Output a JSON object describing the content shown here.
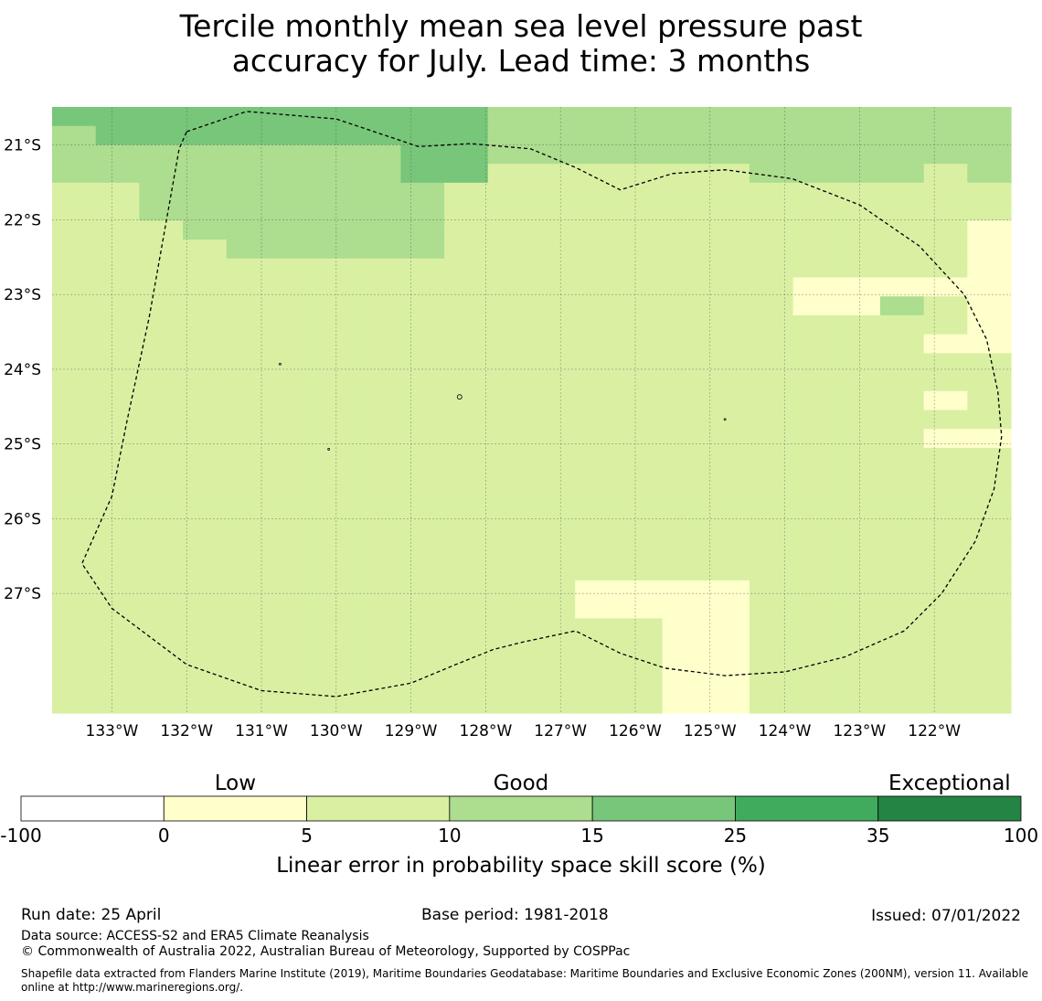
{
  "title_line1": "Tercile monthly mean sea level pressure past",
  "title_line2": "accuracy for July. Lead time: 3 months",
  "map": {
    "lon_min": -133.8,
    "lon_max": -120.975,
    "lat_top": -20.49,
    "lat_bottom": -28.6,
    "cell_size_deg": 0.5556,
    "lat_ticks": [
      {
        "value": -21,
        "label": "21°S"
      },
      {
        "value": -22,
        "label": "22°S"
      },
      {
        "value": -23,
        "label": "23°S"
      },
      {
        "value": -24,
        "label": "24°S"
      },
      {
        "value": -25,
        "label": "25°S"
      },
      {
        "value": -26,
        "label": "26°S"
      },
      {
        "value": -27,
        "label": "27°S"
      }
    ],
    "lon_ticks": [
      {
        "value": -133,
        "label": "133°W"
      },
      {
        "value": -132,
        "label": "132°W"
      },
      {
        "value": -131,
        "label": "131°W"
      },
      {
        "value": -130,
        "label": "130°W"
      },
      {
        "value": -129,
        "label": "129°W"
      },
      {
        "value": -128,
        "label": "128°W"
      },
      {
        "value": -127,
        "label": "127°W"
      },
      {
        "value": -126,
        "label": "126°W"
      },
      {
        "value": -125,
        "label": "125°W"
      },
      {
        "value": -124,
        "label": "124°W"
      },
      {
        "value": -123,
        "label": "123°W"
      },
      {
        "value": -122,
        "label": "122°W"
      }
    ],
    "skill_grid_levels": [
      "4444444444333333333333",
      "3444444444333333333333",
      "3333333344333333333333",
      "3333333344222222333323",
      "2233333332222222222222",
      "2233333332222222222222",
      "2223333332222222222221",
      "2222333332222222222221",
      "2222222222222222222221",
      "2222222222222222211111",
      "2222222222222222211321",
      "2222222222222222222221",
      "2222222222222222222211",
      "2222222222222222222222",
      "2222222222222222222222",
      "2222222222222222222212",
      "2222222222222222222222",
      "2222222222222222222211",
      "2222222222222222222222",
      "2222222222222222222222",
      "2222222222222222222222",
      "2222222222222222222222",
      "2222222222222222222222",
      "2222222222222222222222",
      "2222222222222222222222",
      "2222222222221111222222",
      "2222222222221111222222",
      "2222222222222211222222",
      "2222222222222211222222",
      "2222222222222211222222",
      "2222222222222211222222",
      "2222222222222211222222"
    ],
    "eez_boundary": [
      [
        -132.0,
        -20.82
      ],
      [
        -131.2,
        -20.55
      ],
      [
        -130.0,
        -20.65
      ],
      [
        -128.9,
        -21.02
      ],
      [
        -128.2,
        -20.98
      ],
      [
        -127.4,
        -21.05
      ],
      [
        -126.8,
        -21.3
      ],
      [
        -126.2,
        -21.6
      ],
      [
        -125.5,
        -21.38
      ],
      [
        -124.8,
        -21.33
      ],
      [
        -123.9,
        -21.45
      ],
      [
        -123.0,
        -21.8
      ],
      [
        -122.2,
        -22.35
      ],
      [
        -121.6,
        -23.0
      ],
      [
        -121.3,
        -23.6
      ],
      [
        -121.15,
        -24.3
      ],
      [
        -121.1,
        -24.9
      ],
      [
        -121.2,
        -25.6
      ],
      [
        -121.45,
        -26.3
      ],
      [
        -121.9,
        -27.0
      ],
      [
        -122.4,
        -27.5
      ],
      [
        -123.2,
        -27.85
      ],
      [
        -124.0,
        -28.05
      ],
      [
        -124.8,
        -28.1
      ],
      [
        -125.6,
        -28.0
      ],
      [
        -126.2,
        -27.8
      ],
      [
        -126.8,
        -27.5
      ],
      [
        -127.5,
        -27.65
      ],
      [
        -127.9,
        -27.75
      ],
      [
        -128.4,
        -27.95
      ],
      [
        -129.0,
        -28.2
      ],
      [
        -130.0,
        -28.38
      ],
      [
        -131.0,
        -28.3
      ],
      [
        -132.0,
        -27.95
      ],
      [
        -133.0,
        -27.2
      ],
      [
        -133.4,
        -26.6
      ],
      [
        -133.0,
        -25.7
      ],
      [
        -132.8,
        -24.7
      ],
      [
        -132.5,
        -23.3
      ],
      [
        -132.1,
        -21.05
      ],
      [
        -132.0,
        -20.82
      ]
    ]
  },
  "colorbar": {
    "boundaries": [
      "-100",
      "0",
      "5",
      "10",
      "15",
      "25",
      "35",
      "100"
    ],
    "colors": [
      "#ffffff",
      "#ffffcc",
      "#d9f0a3",
      "#addd8e",
      "#78c679",
      "#41ab5d",
      "#238443"
    ],
    "categories": [
      {
        "label": "Low",
        "center_index": 1.5
      },
      {
        "label": "Good",
        "center_index": 3.5
      },
      {
        "label": "Exceptional",
        "center_index": 6.5
      }
    ],
    "label": "Linear error in probability space skill score (%)"
  },
  "footer": {
    "run_date": "Run date: 25 April",
    "base_period": "Base period: 1981-2018",
    "issued": "Issued: 07/01/2022",
    "data_source": "Data source: ACCESS-S2 and ERA5 Climate Reanalysis",
    "copyright": "© Commonwealth of Australia 2022, Australian Bureau of Meteorology, Supported by COSPPac",
    "shapefile_line1": "Shapefile data extracted from Flanders Marine Institute (2019), Maritime Boundaries Geodatabase: Maritime Boundaries and Exclusive Economic Zones (200NM), version 11. Available",
    "shapefile_line2": "online at http://www.marineregions.org/."
  }
}
